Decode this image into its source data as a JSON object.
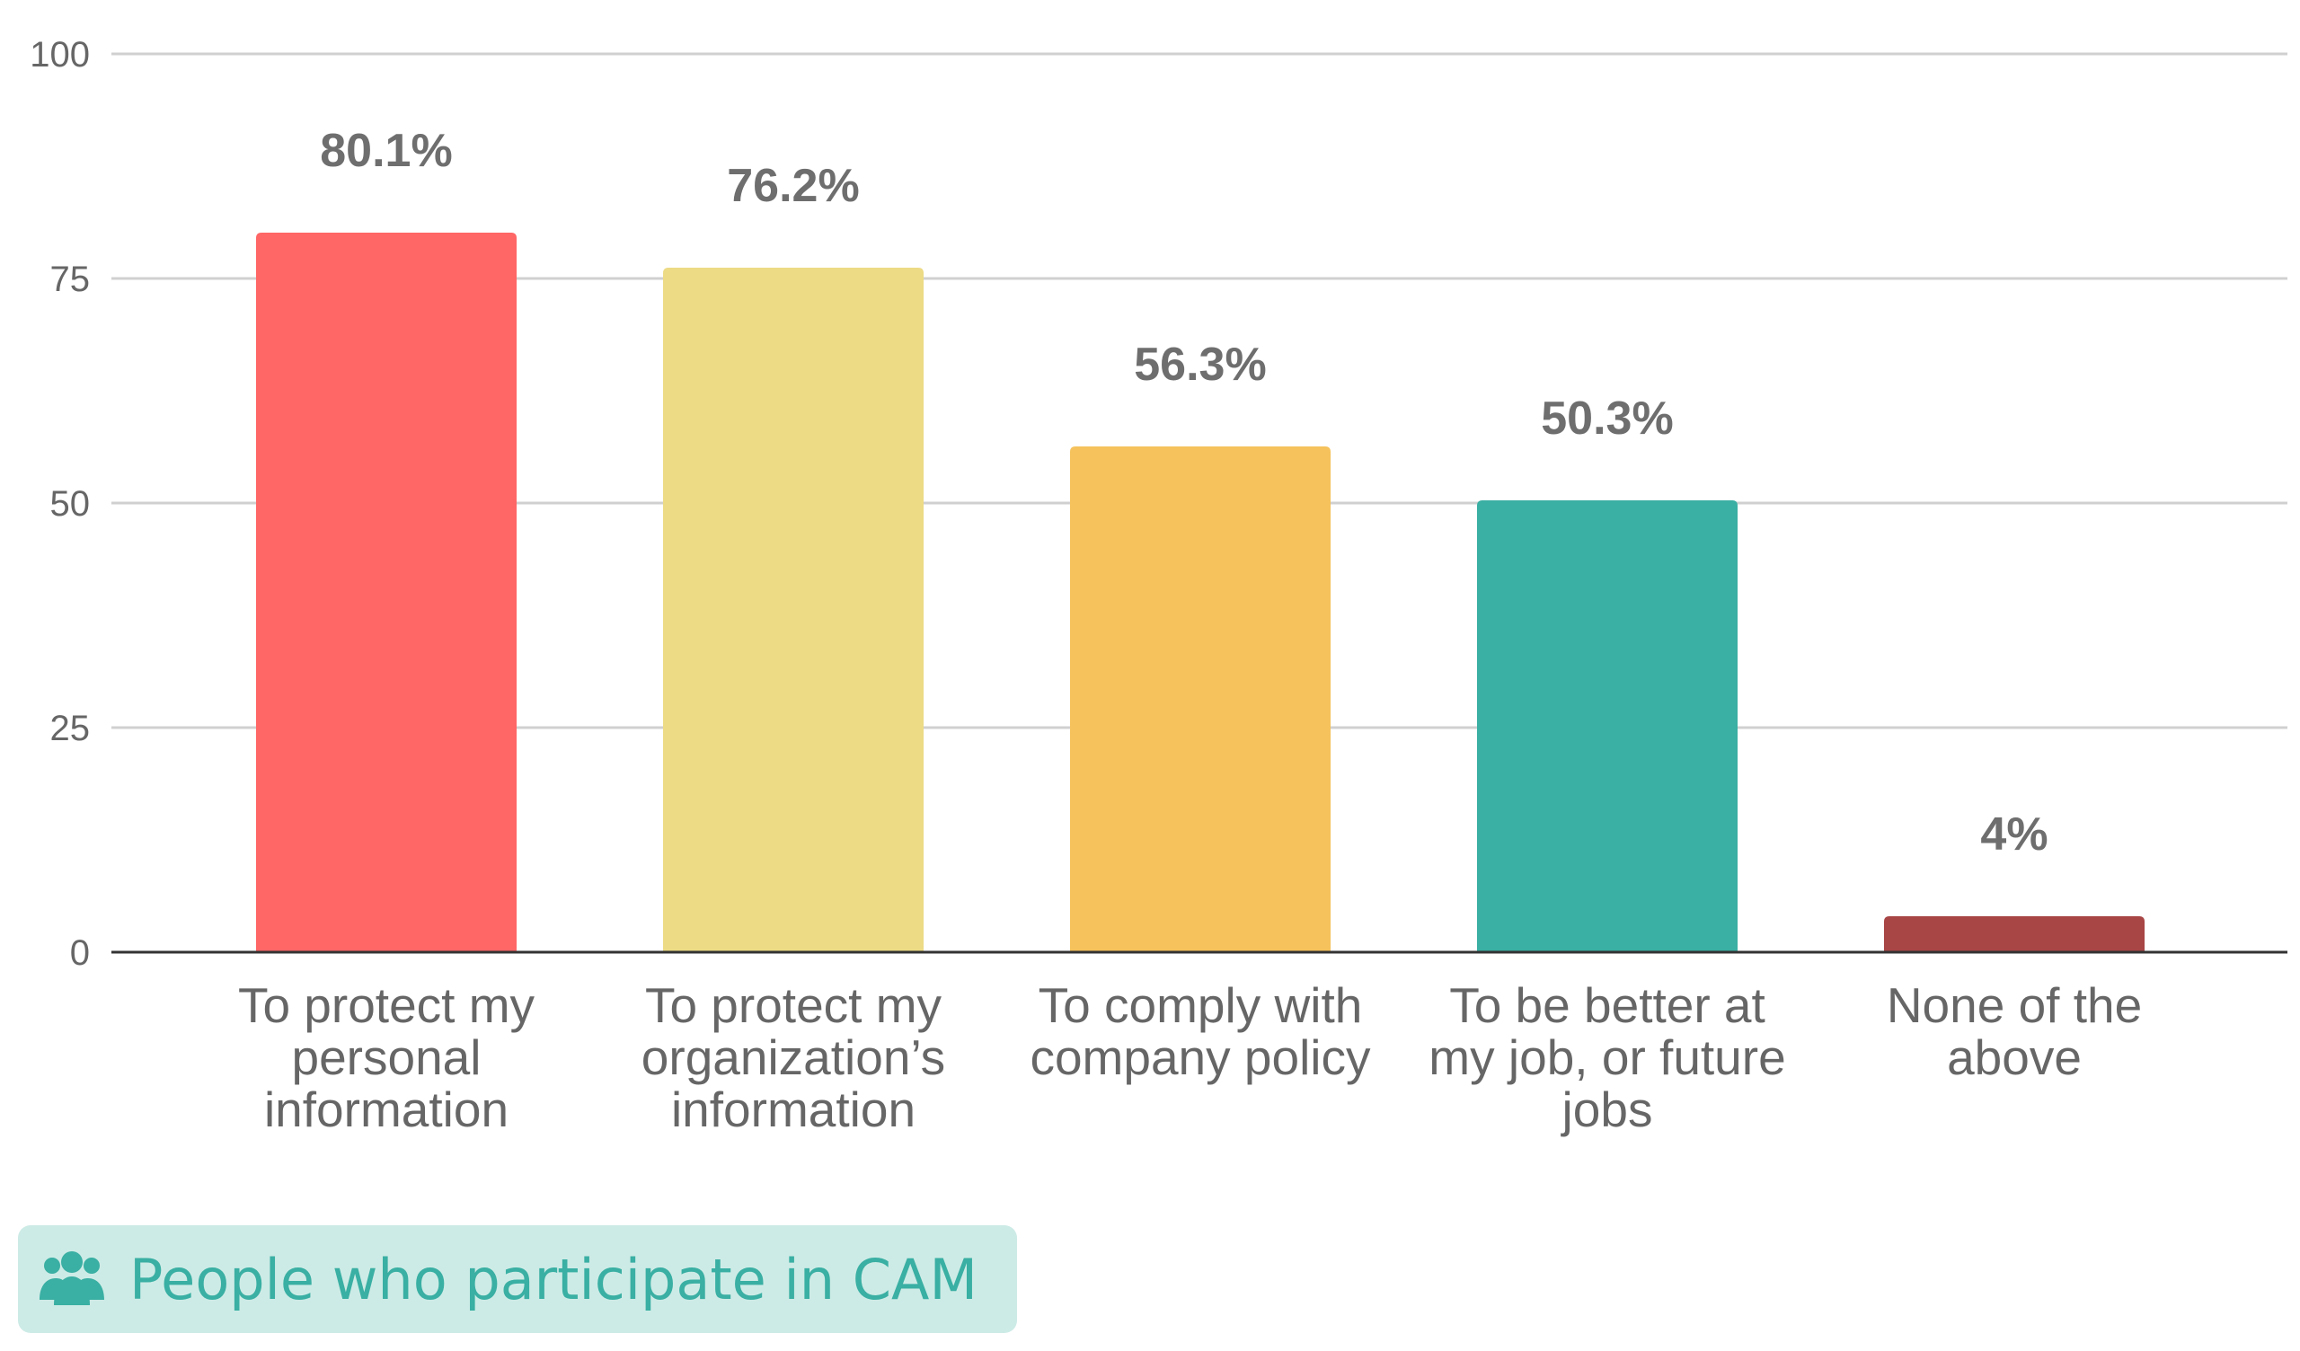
{
  "chart_data": {
    "type": "bar",
    "categories": [
      [
        "To protect my",
        "personal",
        "information"
      ],
      [
        "To protect my",
        "organization’s",
        "information"
      ],
      [
        "To comply with",
        "company policy"
      ],
      [
        "To be better at",
        "my job, or future",
        "jobs"
      ],
      [
        "None of the",
        "above"
      ]
    ],
    "values": [
      80.1,
      76.2,
      56.3,
      50.3,
      4
    ],
    "data_labels": [
      "80.1%",
      "76.2%",
      "56.3%",
      "50.3%",
      "4%"
    ],
    "colors": [
      "#ff6666",
      "#eddb85",
      "#f5c25c",
      "#3aafa3",
      "#a84545"
    ],
    "ylim": [
      0,
      100
    ],
    "yticks": [
      0,
      25,
      50,
      75,
      100
    ],
    "grid": true,
    "legend": {
      "position": "bottom-left",
      "icon": "people-group-icon",
      "text": "People who participate in CAM",
      "background": "#cdebe6",
      "text_color": "#3aafa3"
    }
  }
}
